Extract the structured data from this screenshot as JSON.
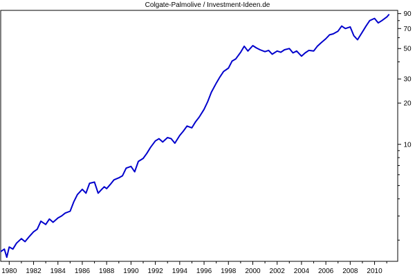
{
  "chart_data": {
    "type": "line",
    "title": "Colgate-Palmolive /  Investment-Ideen.de",
    "xlabel": "",
    "ylabel": "",
    "y_scale": "log",
    "ylim": [
      1.4,
      95
    ],
    "xlim": [
      1979.3,
      2011.9
    ],
    "y_ticks": [
      10,
      20,
      30,
      50,
      70,
      90
    ],
    "y_tick_labels": [
      "10",
      "20",
      "30",
      "50",
      "70",
      "90"
    ],
    "x_ticks": [
      1980,
      1982,
      1984,
      1986,
      1988,
      1990,
      1992,
      1994,
      1996,
      1998,
      2000,
      2002,
      2004,
      2006,
      2008,
      2010
    ],
    "x_tick_labels": [
      "1980",
      "1982",
      "1984",
      "1986",
      "1988",
      "1990",
      "1992",
      "1994",
      "1996",
      "1998",
      "2000",
      "2002",
      "2004",
      "2006",
      "2008",
      "2010"
    ],
    "grid": false,
    "line_color": "#0000cc",
    "series": [
      {
        "x": [
          1979.3,
          1979.6,
          1979.8,
          1980.0,
          1980.3,
          1980.6,
          1981.0,
          1981.3,
          1981.6,
          1982.0,
          1982.3,
          1982.6,
          1983.0,
          1983.3,
          1983.6,
          1984.0,
          1984.3,
          1984.6,
          1985.0,
          1985.3,
          1985.6,
          1986.0,
          1986.3,
          1986.6,
          1987.0,
          1987.3,
          1987.6,
          1987.8,
          1988.0,
          1988.3,
          1988.6,
          1989.0,
          1989.3,
          1989.6,
          1990.0,
          1990.3,
          1990.6,
          1991.0,
          1991.3,
          1991.6,
          1992.0,
          1992.3,
          1992.6,
          1993.0,
          1993.3,
          1993.6,
          1994.0,
          1994.3,
          1994.6,
          1995.0,
          1995.3,
          1995.6,
          1996.0,
          1996.3,
          1996.6,
          1997.0,
          1997.3,
          1997.6,
          1998.0,
          1998.3,
          1998.6,
          1999.0,
          1999.3,
          1999.6,
          2000.0,
          2000.3,
          2000.6,
          2001.0,
          2001.3,
          2001.6,
          2002.0,
          2002.3,
          2002.6,
          2003.0,
          2003.3,
          2003.6,
          2004.0,
          2004.3,
          2004.6,
          2005.0,
          2005.3,
          2005.6,
          2006.0,
          2006.3,
          2006.6,
          2007.0,
          2007.3,
          2007.6,
          2008.0,
          2008.3,
          2008.6,
          2009.0,
          2009.3,
          2009.6,
          2010.0,
          2010.3,
          2010.6,
          2011.0,
          2011.2
        ],
        "values": [
          1.65,
          1.72,
          1.5,
          1.78,
          1.72,
          1.9,
          2.05,
          1.95,
          2.1,
          2.3,
          2.4,
          2.75,
          2.6,
          2.85,
          2.7,
          2.9,
          3.0,
          3.15,
          3.25,
          3.8,
          4.3,
          4.7,
          4.4,
          5.2,
          5.3,
          4.4,
          4.7,
          4.9,
          4.75,
          5.1,
          5.5,
          5.7,
          5.9,
          6.7,
          6.9,
          6.3,
          7.5,
          7.9,
          8.6,
          9.5,
          10.6,
          11.0,
          10.4,
          11.2,
          11.0,
          10.2,
          11.6,
          12.5,
          13.6,
          13.2,
          14.6,
          15.8,
          18.0,
          20.5,
          24.0,
          28.0,
          31.0,
          34.0,
          36.0,
          40.5,
          42.0,
          47.0,
          52.0,
          48.0,
          52.5,
          50.5,
          49.0,
          47.5,
          48.5,
          45.5,
          48.0,
          47.0,
          49.0,
          50.0,
          46.5,
          48.0,
          44.0,
          46.5,
          48.5,
          48.0,
          52.0,
          55.0,
          59.0,
          63.0,
          64.0,
          67.0,
          73.0,
          70.0,
          72.0,
          62.0,
          58.0,
          66.0,
          73.0,
          80.0,
          83.0,
          77.0,
          80.0,
          85.0,
          89.0
        ]
      }
    ]
  }
}
